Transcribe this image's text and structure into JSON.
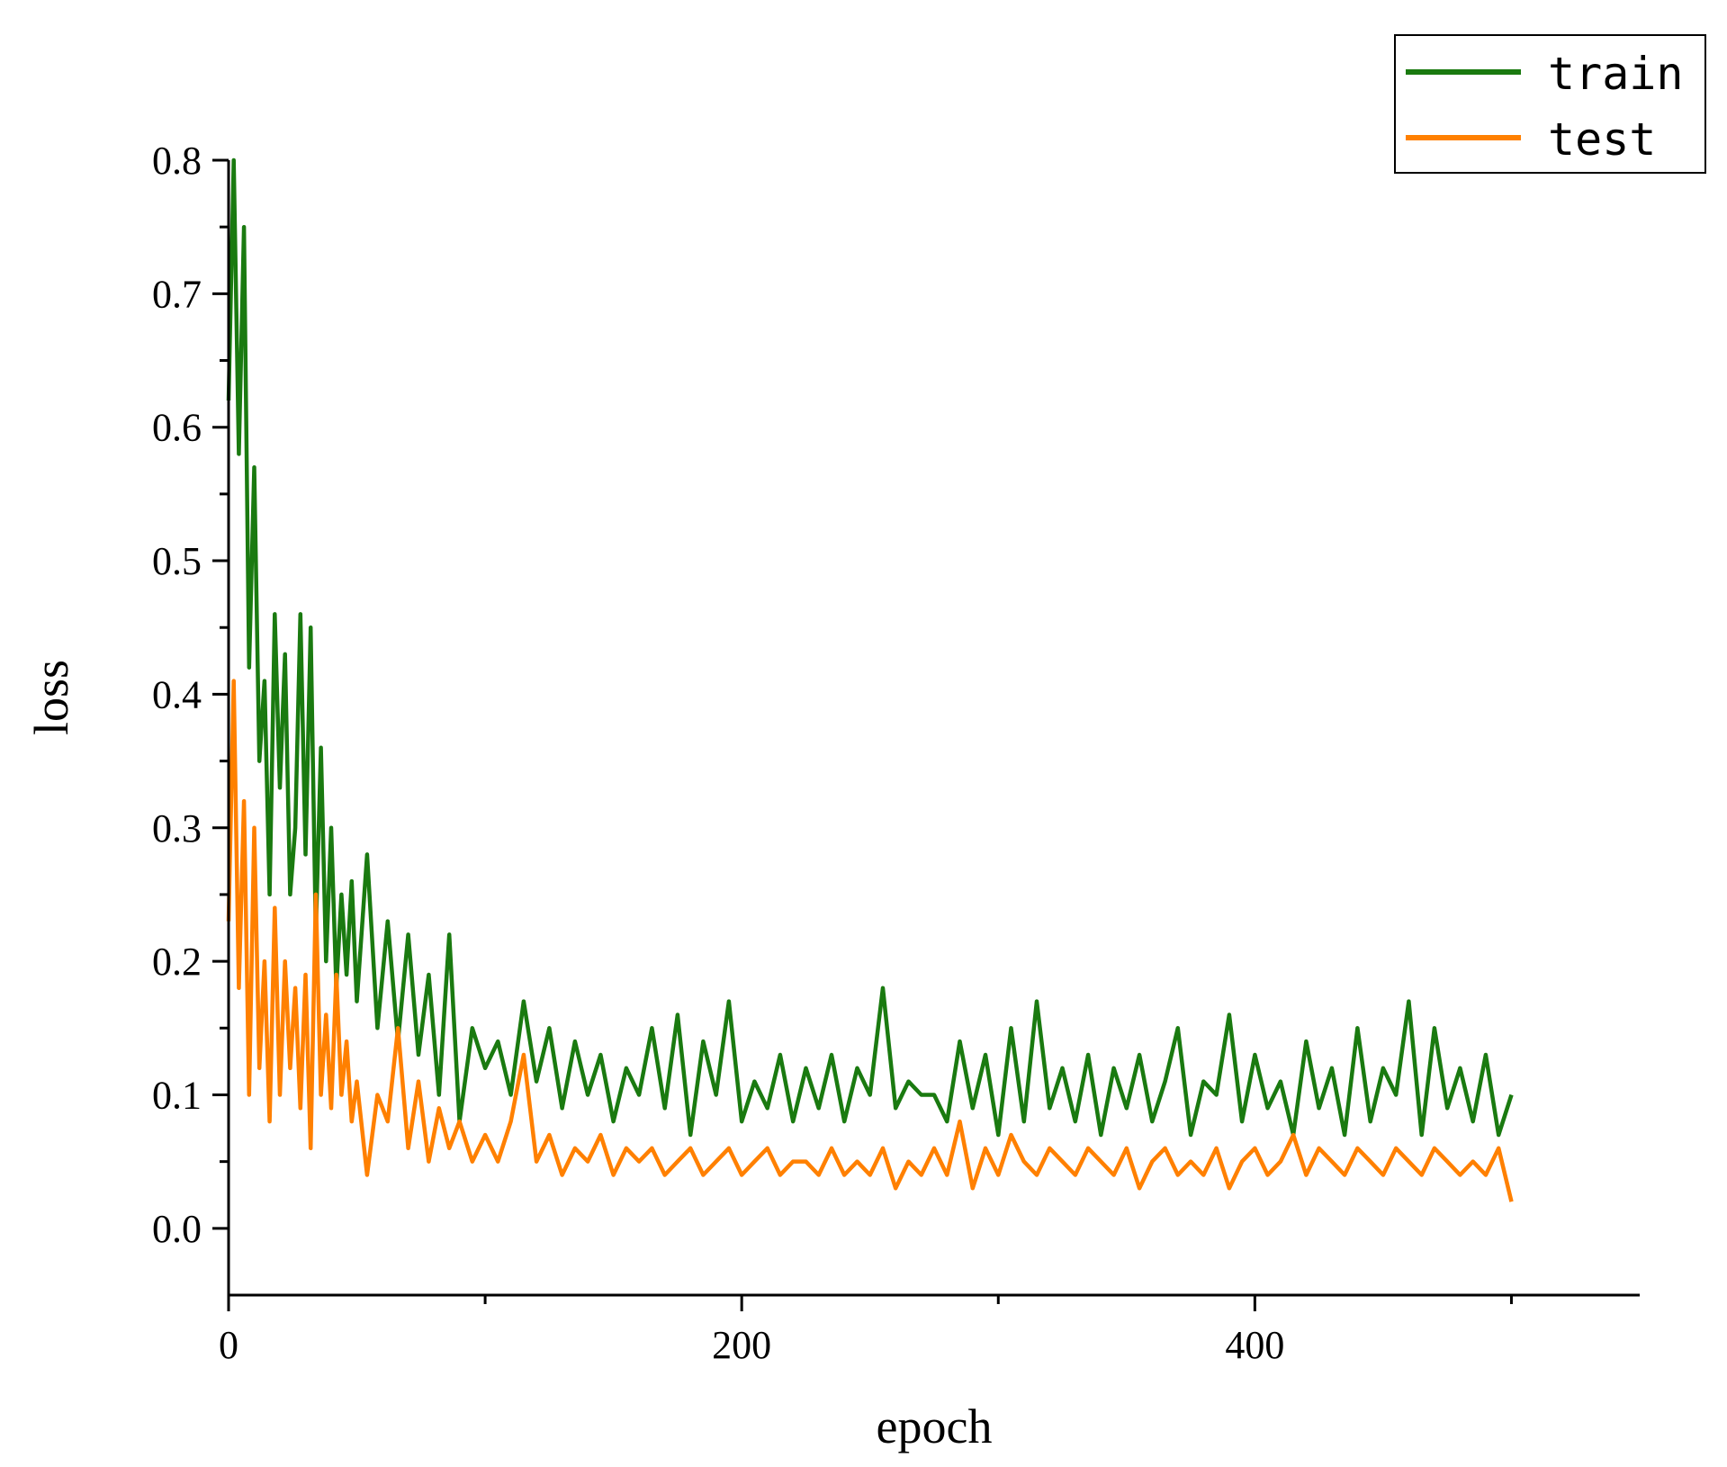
{
  "chart_data": {
    "type": "line",
    "title": "",
    "xlabel": "epoch",
    "ylabel": "loss",
    "xlim": [
      0,
      550
    ],
    "ylim": [
      -0.05,
      0.8
    ],
    "xticks": [
      0,
      200,
      400
    ],
    "xtick_labels": [
      "0",
      "200",
      "400"
    ],
    "xminor_ticks": [
      100,
      300,
      500
    ],
    "yticks": [
      0.0,
      0.1,
      0.2,
      0.3,
      0.4,
      0.5,
      0.6,
      0.7,
      0.8
    ],
    "ytick_labels": [
      "0.0",
      "0.1",
      "0.2",
      "0.3",
      "0.4",
      "0.5",
      "0.6",
      "0.7",
      "0.8"
    ],
    "grid": false,
    "legend": "top-right",
    "series": [
      {
        "name": "train",
        "color": "#1a7a10",
        "x": [
          0,
          2,
          4,
          6,
          8,
          10,
          12,
          14,
          16,
          18,
          20,
          22,
          24,
          26,
          28,
          30,
          32,
          34,
          36,
          38,
          40,
          42,
          44,
          46,
          48,
          50,
          54,
          58,
          62,
          66,
          70,
          74,
          78,
          82,
          86,
          90,
          95,
          100,
          105,
          110,
          115,
          120,
          125,
          130,
          135,
          140,
          145,
          150,
          155,
          160,
          165,
          170,
          175,
          180,
          185,
          190,
          195,
          200,
          205,
          210,
          215,
          220,
          225,
          230,
          235,
          240,
          245,
          250,
          255,
          260,
          265,
          270,
          275,
          280,
          285,
          290,
          295,
          300,
          305,
          310,
          315,
          320,
          325,
          330,
          335,
          340,
          345,
          350,
          355,
          360,
          365,
          370,
          375,
          380,
          385,
          390,
          395,
          400,
          405,
          410,
          415,
          420,
          425,
          430,
          435,
          440,
          445,
          450,
          455,
          460,
          465,
          470,
          475,
          480,
          485,
          490,
          495,
          500
        ],
        "y": [
          0.62,
          0.8,
          0.58,
          0.75,
          0.42,
          0.57,
          0.35,
          0.41,
          0.25,
          0.46,
          0.33,
          0.43,
          0.25,
          0.3,
          0.46,
          0.28,
          0.45,
          0.22,
          0.36,
          0.2,
          0.3,
          0.18,
          0.25,
          0.19,
          0.26,
          0.17,
          0.28,
          0.15,
          0.23,
          0.14,
          0.22,
          0.13,
          0.19,
          0.1,
          0.22,
          0.08,
          0.15,
          0.12,
          0.14,
          0.1,
          0.17,
          0.11,
          0.15,
          0.09,
          0.14,
          0.1,
          0.13,
          0.08,
          0.12,
          0.1,
          0.15,
          0.09,
          0.16,
          0.07,
          0.14,
          0.1,
          0.17,
          0.08,
          0.11,
          0.09,
          0.13,
          0.08,
          0.12,
          0.09,
          0.13,
          0.08,
          0.12,
          0.1,
          0.18,
          0.09,
          0.11,
          0.1,
          0.1,
          0.08,
          0.14,
          0.09,
          0.13,
          0.07,
          0.15,
          0.08,
          0.17,
          0.09,
          0.12,
          0.08,
          0.13,
          0.07,
          0.12,
          0.09,
          0.13,
          0.08,
          0.11,
          0.15,
          0.07,
          0.11,
          0.1,
          0.16,
          0.08,
          0.13,
          0.09,
          0.11,
          0.07,
          0.14,
          0.09,
          0.12,
          0.07,
          0.15,
          0.08,
          0.12,
          0.1,
          0.17,
          0.07,
          0.15,
          0.09,
          0.12,
          0.08,
          0.13,
          0.07,
          0.1
        ]
      },
      {
        "name": "test",
        "color": "#ff8000",
        "x": [
          0,
          2,
          4,
          6,
          8,
          10,
          12,
          14,
          16,
          18,
          20,
          22,
          24,
          26,
          28,
          30,
          32,
          34,
          36,
          38,
          40,
          42,
          44,
          46,
          48,
          50,
          54,
          58,
          62,
          66,
          70,
          74,
          78,
          82,
          86,
          90,
          95,
          100,
          105,
          110,
          115,
          120,
          125,
          130,
          135,
          140,
          145,
          150,
          155,
          160,
          165,
          170,
          175,
          180,
          185,
          190,
          195,
          200,
          205,
          210,
          215,
          220,
          225,
          230,
          235,
          240,
          245,
          250,
          255,
          260,
          265,
          270,
          275,
          280,
          285,
          290,
          295,
          300,
          305,
          310,
          315,
          320,
          325,
          330,
          335,
          340,
          345,
          350,
          355,
          360,
          365,
          370,
          375,
          380,
          385,
          390,
          395,
          400,
          405,
          410,
          415,
          420,
          425,
          430,
          435,
          440,
          445,
          450,
          455,
          460,
          465,
          470,
          475,
          480,
          485,
          490,
          495,
          500
        ],
        "y": [
          0.23,
          0.41,
          0.18,
          0.32,
          0.1,
          0.3,
          0.12,
          0.2,
          0.08,
          0.24,
          0.1,
          0.2,
          0.12,
          0.18,
          0.09,
          0.19,
          0.06,
          0.25,
          0.1,
          0.16,
          0.09,
          0.19,
          0.1,
          0.14,
          0.08,
          0.11,
          0.04,
          0.1,
          0.08,
          0.15,
          0.06,
          0.11,
          0.05,
          0.09,
          0.06,
          0.08,
          0.05,
          0.07,
          0.05,
          0.08,
          0.13,
          0.05,
          0.07,
          0.04,
          0.06,
          0.05,
          0.07,
          0.04,
          0.06,
          0.05,
          0.06,
          0.04,
          0.05,
          0.06,
          0.04,
          0.05,
          0.06,
          0.04,
          0.05,
          0.06,
          0.04,
          0.05,
          0.05,
          0.04,
          0.06,
          0.04,
          0.05,
          0.04,
          0.06,
          0.03,
          0.05,
          0.04,
          0.06,
          0.04,
          0.08,
          0.03,
          0.06,
          0.04,
          0.07,
          0.05,
          0.04,
          0.06,
          0.05,
          0.04,
          0.06,
          0.05,
          0.04,
          0.06,
          0.03,
          0.05,
          0.06,
          0.04,
          0.05,
          0.04,
          0.06,
          0.03,
          0.05,
          0.06,
          0.04,
          0.05,
          0.07,
          0.04,
          0.06,
          0.05,
          0.04,
          0.06,
          0.05,
          0.04,
          0.06,
          0.05,
          0.04,
          0.06,
          0.05,
          0.04,
          0.05,
          0.04,
          0.06,
          0.02
        ]
      }
    ]
  }
}
